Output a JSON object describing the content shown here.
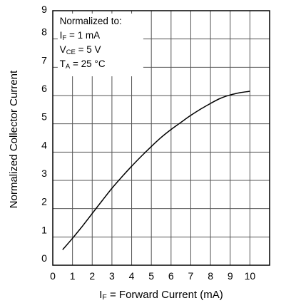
{
  "chart_data": {
    "type": "line",
    "title": "",
    "xlabel": {
      "main": "I",
      "sub": "F",
      "rest": " = Forward Current (mA)"
    },
    "ylabel": "Normalized Collector Current",
    "xlim": [
      0,
      11
    ],
    "ylim": [
      0,
      9
    ],
    "x_ticks": [
      0,
      1,
      2,
      3,
      4,
      5,
      6,
      7,
      8,
      9,
      10
    ],
    "y_ticks": [
      0,
      1,
      2,
      3,
      4,
      5,
      6,
      7,
      8,
      9
    ],
    "x_ticks_labels": [
      "0",
      "1",
      "2",
      "3",
      "4",
      "5",
      "6",
      "7",
      "8",
      "9",
      "10"
    ],
    "y_ticks_labels": [
      "0",
      "1",
      "2",
      "3",
      "4",
      "5",
      "6",
      "7",
      "8",
      "9"
    ],
    "grid": true,
    "series": [
      {
        "color": "#000000",
        "x": [
          0.5,
          1,
          1.5,
          2,
          2.5,
          3,
          3.5,
          4,
          4.5,
          5,
          5.5,
          6,
          6.5,
          7,
          7.5,
          8,
          8.5,
          9,
          9.5,
          10
        ],
        "y": [
          0.55,
          0.95,
          1.38,
          1.83,
          2.28,
          2.72,
          3.12,
          3.5,
          3.86,
          4.2,
          4.52,
          4.8,
          5.05,
          5.3,
          5.52,
          5.72,
          5.9,
          6.02,
          6.1,
          6.15
        ]
      }
    ],
    "annotation": {
      "heading": "Normalized to:",
      "lines": [
        {
          "main": "I",
          "sub": "F",
          "rest": " = 1 mA"
        },
        {
          "main": "V",
          "sub": "CE",
          "rest": " = 5 V"
        },
        {
          "main": "T",
          "sub": "A",
          "rest": " = 25 °C"
        }
      ]
    }
  }
}
